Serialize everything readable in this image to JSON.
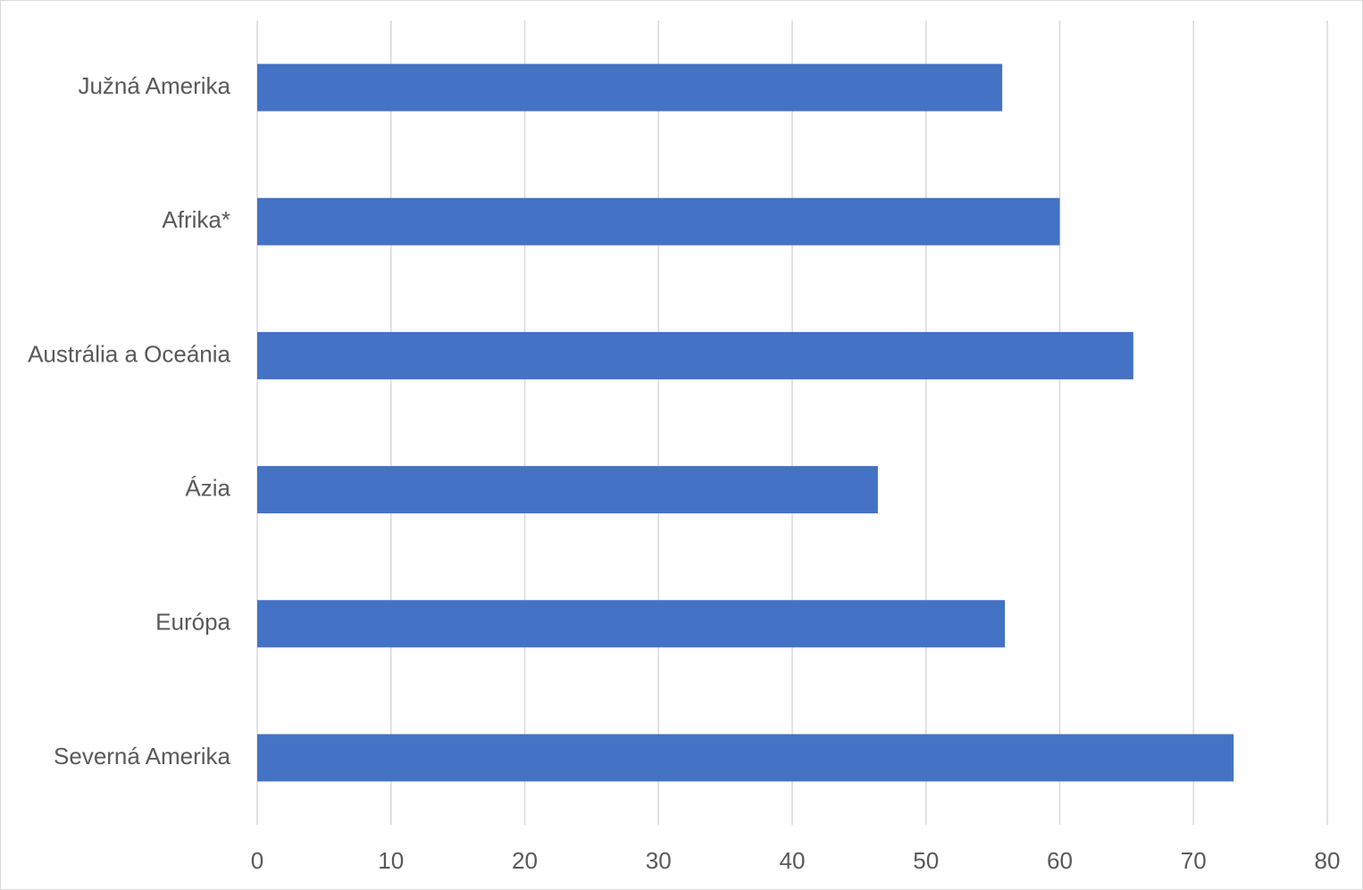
{
  "chart_data": {
    "type": "bar",
    "orientation": "horizontal",
    "categories": [
      "Južná Amerika",
      "Afrika*",
      "Austrália a Oceánia",
      "Ázia",
      "Európa",
      "Severná Amerika"
    ],
    "values": [
      55.7,
      60,
      65.5,
      46.4,
      55.9,
      73
    ],
    "color": "#4472c4",
    "xlim": [
      0,
      80
    ],
    "xticks": [
      0,
      10,
      20,
      30,
      40,
      50,
      60,
      70,
      80
    ],
    "grid": true
  }
}
